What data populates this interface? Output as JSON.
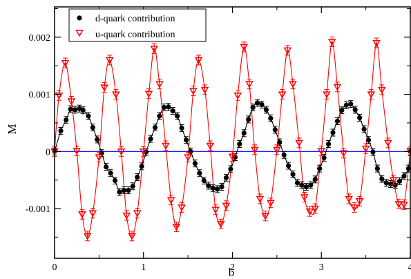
{
  "chart_data": {
    "type": "scatter",
    "xlabel": "b",
    "ylabel": "M",
    "xlim": [
      0,
      4
    ],
    "ylim": [
      -0.00187,
      0.00253
    ],
    "grid": false,
    "legend_position": "top-left",
    "x_ticks": [
      0,
      1,
      2,
      3,
      4
    ],
    "x_tick_labels": [
      "0",
      "1",
      "2",
      "3",
      "4"
    ],
    "y_ticks": [
      -0.001,
      0,
      0.001,
      0.002
    ],
    "y_tick_labels": [
      "-0.001",
      "0",
      "0.001",
      "0.002"
    ],
    "colors": {
      "d": "#000000",
      "u": "#ff0000",
      "zero_line": "#0000ff",
      "axes": "#000000"
    },
    "series": [
      {
        "name": "d-quark contribution",
        "marker": "circle",
        "color": "#000000",
        "points": [
          [
            0.0,
            0.0
          ],
          [
            0.07,
            0.00036
          ],
          [
            0.13,
            0.00055
          ],
          [
            0.18,
            0.00074
          ],
          [
            0.23,
            0.00073
          ],
          [
            0.28,
            0.00075
          ],
          [
            0.32,
            0.00072
          ],
          [
            0.38,
            0.00062
          ],
          [
            0.43,
            0.00042
          ],
          [
            0.48,
            0.00021
          ],
          [
            0.53,
            -3e-05
          ],
          [
            0.58,
            -0.00027
          ],
          [
            0.63,
            -0.00038
          ],
          [
            0.68,
            -0.00051
          ],
          [
            0.73,
            -0.00071
          ],
          [
            0.78,
            -0.00068
          ],
          [
            0.83,
            -0.00068
          ],
          [
            0.88,
            -0.00061
          ],
          [
            0.93,
            -0.00045
          ],
          [
            0.98,
            -0.00026
          ],
          [
            1.03,
            -1e-05
          ],
          [
            1.08,
            0.00022
          ],
          [
            1.13,
            0.00042
          ],
          [
            1.18,
            0.00062
          ],
          [
            1.23,
            0.00077
          ],
          [
            1.28,
            0.00078
          ],
          [
            1.33,
            0.00071
          ],
          [
            1.38,
            0.00062
          ],
          [
            1.43,
            0.00041
          ],
          [
            1.48,
            0.0002
          ],
          [
            1.53,
            0.0
          ],
          [
            1.58,
            -0.00021
          ],
          [
            1.63,
            -0.00038
          ],
          [
            1.68,
            -0.00051
          ],
          [
            1.73,
            -0.0006
          ],
          [
            1.78,
            -0.00064
          ],
          [
            1.83,
            -0.00066
          ],
          [
            1.88,
            -0.00062
          ],
          [
            1.93,
            -0.00046
          ],
          [
            1.98,
            -0.00031
          ],
          [
            2.03,
            -0.0001
          ],
          [
            2.08,
            0.00013
          ],
          [
            2.13,
            0.00032
          ],
          [
            2.18,
            0.00056
          ],
          [
            2.23,
            0.00077
          ],
          [
            2.28,
            0.00085
          ],
          [
            2.33,
            0.00082
          ],
          [
            2.38,
            0.00073
          ],
          [
            2.43,
            0.00058
          ],
          [
            2.48,
            0.00038
          ],
          [
            2.53,
            0.00016
          ],
          [
            2.58,
            -6e-05
          ],
          [
            2.63,
            -0.00025
          ],
          [
            2.68,
            -0.0004
          ],
          [
            2.73,
            -0.00055
          ],
          [
            2.78,
            -0.00059
          ],
          [
            2.83,
            -0.00062
          ],
          [
            2.88,
            -0.00059
          ],
          [
            2.93,
            -0.00049
          ],
          [
            2.98,
            -0.0003
          ],
          [
            3.03,
            -0.00011
          ],
          [
            3.08,
            0.00013
          ],
          [
            3.13,
            0.00033
          ],
          [
            3.18,
            0.00053
          ],
          [
            3.23,
            0.00072
          ],
          [
            3.28,
            0.00081
          ],
          [
            3.33,
            0.00083
          ],
          [
            3.38,
            0.00073
          ],
          [
            3.43,
            0.00059
          ],
          [
            3.48,
            0.00039
          ],
          [
            3.53,
            0.0002
          ],
          [
            3.58,
            -1e-05
          ],
          [
            3.63,
            -0.0003
          ],
          [
            3.68,
            -0.00048
          ],
          [
            3.73,
            -0.00055
          ],
          [
            3.78,
            -0.00057
          ],
          [
            3.83,
            -0.00059
          ],
          [
            3.88,
            -0.00052
          ],
          [
            3.93,
            -0.00043
          ],
          [
            3.98,
            -0.0003
          ],
          [
            4.0,
            0.0
          ]
        ]
      },
      {
        "name": "u-quark contribution",
        "marker": "triangle-down",
        "color": "#ff0000",
        "points": [
          [
            0.0,
            0.0
          ],
          [
            0.05,
            0.00098
          ],
          [
            0.12,
            0.00155
          ],
          [
            0.19,
            0.00088
          ],
          [
            0.25,
            1e-05
          ],
          [
            0.31,
            -0.0011
          ],
          [
            0.37,
            -0.00148
          ],
          [
            0.43,
            -0.00108
          ],
          [
            0.5,
            -0.0001
          ],
          [
            0.56,
            0.00112
          ],
          [
            0.62,
            0.0016
          ],
          [
            0.69,
            0.001
          ],
          [
            0.75,
            0.0
          ],
          [
            0.81,
            -0.00112
          ],
          [
            0.87,
            -0.00148
          ],
          [
            0.93,
            -0.00108
          ],
          [
            1.0,
            0.0
          ],
          [
            1.06,
            0.00101
          ],
          [
            1.12,
            0.0018
          ],
          [
            1.18,
            0.00118
          ],
          [
            1.25,
            0.0001
          ],
          [
            1.31,
            -0.00085
          ],
          [
            1.37,
            -0.00132
          ],
          [
            1.43,
            -0.00098
          ],
          [
            1.5,
            -0.0001
          ],
          [
            1.56,
            0.00106
          ],
          [
            1.62,
            0.0016
          ],
          [
            1.69,
            0.00108
          ],
          [
            1.75,
            0.0001
          ],
          [
            1.81,
            -0.00102
          ],
          [
            1.87,
            -0.00127
          ],
          [
            1.93,
            -0.00095
          ],
          [
            2.0,
            -9e-05
          ],
          [
            2.06,
            0.00098
          ],
          [
            2.13,
            0.00183
          ],
          [
            2.19,
            0.00118
          ],
          [
            2.25,
            3e-05
          ],
          [
            2.31,
            -0.00083
          ],
          [
            2.37,
            -0.00113
          ],
          [
            2.43,
            -0.0009
          ],
          [
            2.5,
            3e-05
          ],
          [
            2.56,
            0.001
          ],
          [
            2.62,
            0.00177
          ],
          [
            2.68,
            0.00118
          ],
          [
            2.75,
            0.00015
          ],
          [
            2.81,
            -0.0008
          ],
          [
            2.87,
            -0.00105
          ],
          [
            2.93,
            -0.001
          ],
          [
            3.0,
            1e-05
          ],
          [
            3.06,
            0.001
          ],
          [
            3.12,
            0.00192
          ],
          [
            3.18,
            0.00113
          ],
          [
            3.25,
            -3e-05
          ],
          [
            3.31,
            -0.00083
          ],
          [
            3.37,
            -0.00098
          ],
          [
            3.43,
            -0.00087
          ],
          [
            3.5,
            5e-05
          ],
          [
            3.56,
            0.001
          ],
          [
            3.62,
            0.0019
          ],
          [
            3.68,
            0.00108
          ],
          [
            3.75,
            0.00015
          ],
          [
            3.81,
            -0.0005
          ],
          [
            3.87,
            -0.00092
          ],
          [
            3.93,
            -0.00093
          ],
          [
            4.0,
            1e-05
          ]
        ]
      }
    ]
  }
}
